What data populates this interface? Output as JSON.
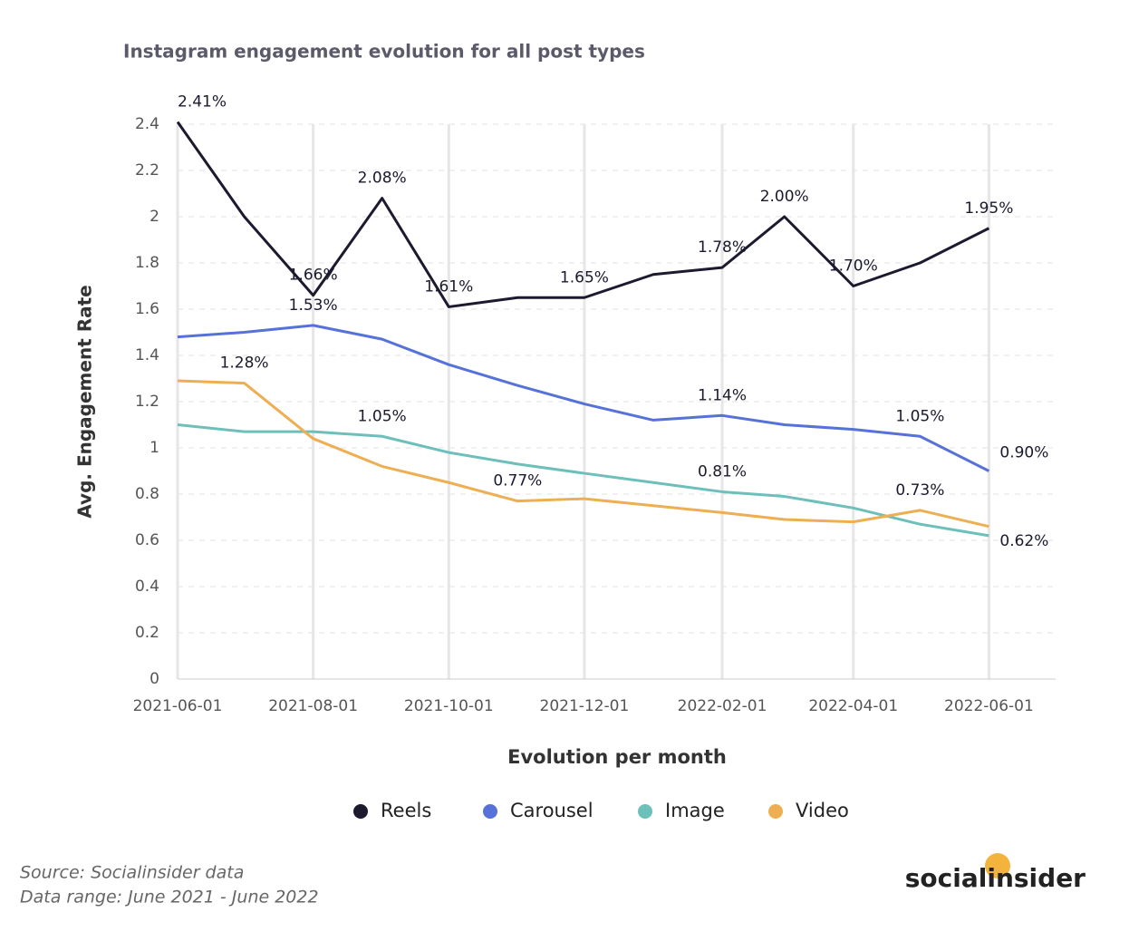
{
  "chart_data": {
    "type": "line",
    "title": "Instagram engagement evolution for all post types",
    "y_label": "Avg. Engagement Rate",
    "x_label": "Evolution per month",
    "x": [
      "2021-06-01",
      "2021-07-01",
      "2021-08-01",
      "2021-09-01",
      "2021-10-01",
      "2021-11-01",
      "2021-12-01",
      "2022-01-01",
      "2022-02-01",
      "2022-03-01",
      "2022-04-01",
      "2022-05-01",
      "2022-06-01"
    ],
    "xlim": [
      "2021-06-01",
      "2022-07-01"
    ],
    "xticks": [
      "2021-06-01",
      "2021-08-01",
      "2021-10-01",
      "2021-12-01",
      "2022-02-01",
      "2022-04-01",
      "2022-06-01"
    ],
    "ylim": [
      0,
      2.4
    ],
    "yticks": [
      0,
      0.2,
      0.4,
      0.6,
      0.8,
      1,
      1.2,
      1.4,
      1.6,
      1.8,
      2,
      2.2,
      2.4
    ],
    "grid": true,
    "legend": "bottom",
    "series": [
      {
        "name": "Reels",
        "color": "#1b1a2e",
        "values": [
          2.41,
          2.0,
          1.66,
          2.08,
          1.61,
          1.65,
          1.65,
          1.75,
          1.78,
          2.0,
          1.7,
          1.8,
          1.95
        ],
        "value_labels": [
          "2.41%",
          null,
          "1.66%",
          "2.08%",
          "1.61%",
          null,
          "1.65%",
          null,
          "1.78%",
          "2.00%",
          "1.70%",
          null,
          "1.95%"
        ]
      },
      {
        "name": "Carousel",
        "color": "#5672d9",
        "values": [
          1.48,
          1.5,
          1.53,
          1.47,
          1.36,
          1.27,
          1.19,
          1.12,
          1.14,
          1.1,
          1.08,
          1.05,
          0.9
        ],
        "value_labels": [
          null,
          null,
          "1.53%",
          null,
          null,
          null,
          null,
          null,
          "1.14%",
          null,
          null,
          "1.05%",
          "0.90%"
        ]
      },
      {
        "name": "Image",
        "color": "#6dc0b9",
        "values": [
          1.1,
          1.07,
          1.07,
          1.05,
          0.98,
          0.93,
          0.89,
          0.85,
          0.81,
          0.79,
          0.74,
          0.67,
          0.62
        ],
        "value_labels": [
          null,
          null,
          null,
          "1.05%",
          null,
          null,
          null,
          null,
          "0.81%",
          null,
          null,
          null,
          "0.62%"
        ]
      },
      {
        "name": "Video",
        "color": "#eeae52",
        "values": [
          1.29,
          1.28,
          1.04,
          0.92,
          0.85,
          0.77,
          0.78,
          0.75,
          0.72,
          0.69,
          0.68,
          0.73,
          0.66
        ],
        "value_labels": [
          null,
          "1.28%",
          null,
          null,
          null,
          "0.77%",
          null,
          null,
          null,
          null,
          null,
          "0.73%",
          null
        ]
      }
    ],
    "source": "Source: Socialinsider data",
    "date_range": "Data range: June 2021 - June 2022",
    "logo": "socialinsider"
  }
}
